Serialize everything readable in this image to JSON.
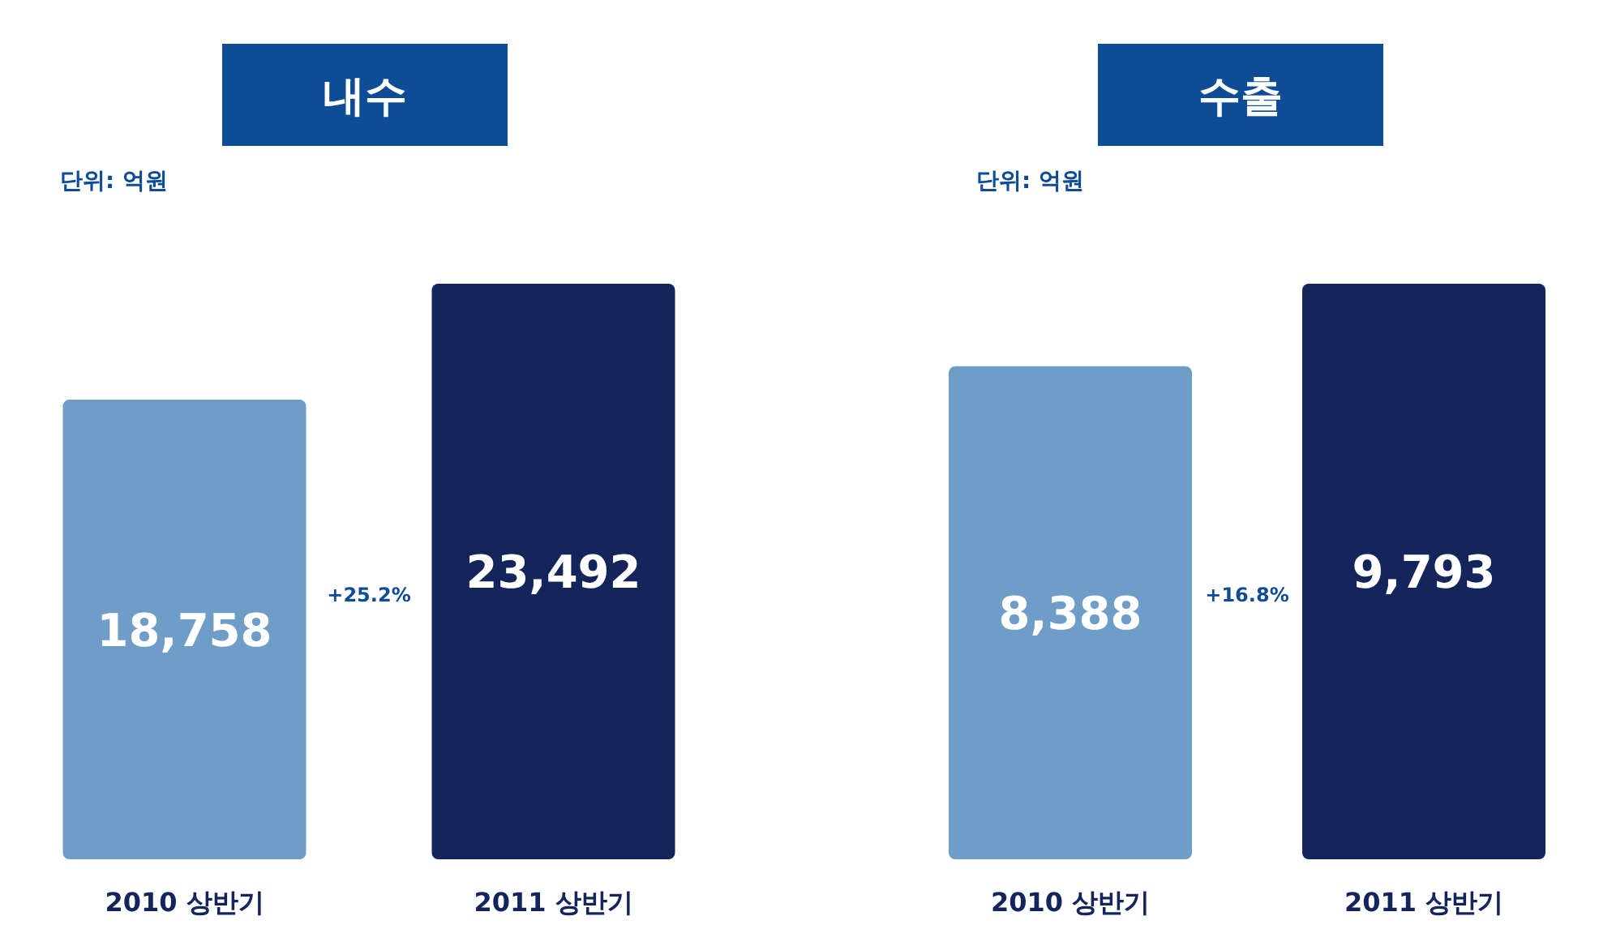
{
  "chart_data": [
    {
      "type": "bar",
      "title": "내수",
      "categories": [
        "2010 상반기",
        "2011 상반기"
      ],
      "values": [
        18758,
        23492
      ],
      "colors": [
        "#6e9dc8",
        "#13255a"
      ],
      "data_labels": true,
      "value_labels": [
        "18,758",
        "23,492"
      ],
      "annotations": [
        "단위: 억원",
        "+25.2%"
      ]
    },
    {
      "type": "bar",
      "title": "수출",
      "categories": [
        "2010 상반기",
        "2011 상반기"
      ],
      "values": [
        8388,
        9793
      ],
      "colors": [
        "#6e9dc8",
        "#13255a"
      ],
      "data_labels": true,
      "value_labels": [
        "8,388",
        "9,793"
      ],
      "annotations": [
        "단위: 억원",
        "+16.8%"
      ]
    }
  ]
}
